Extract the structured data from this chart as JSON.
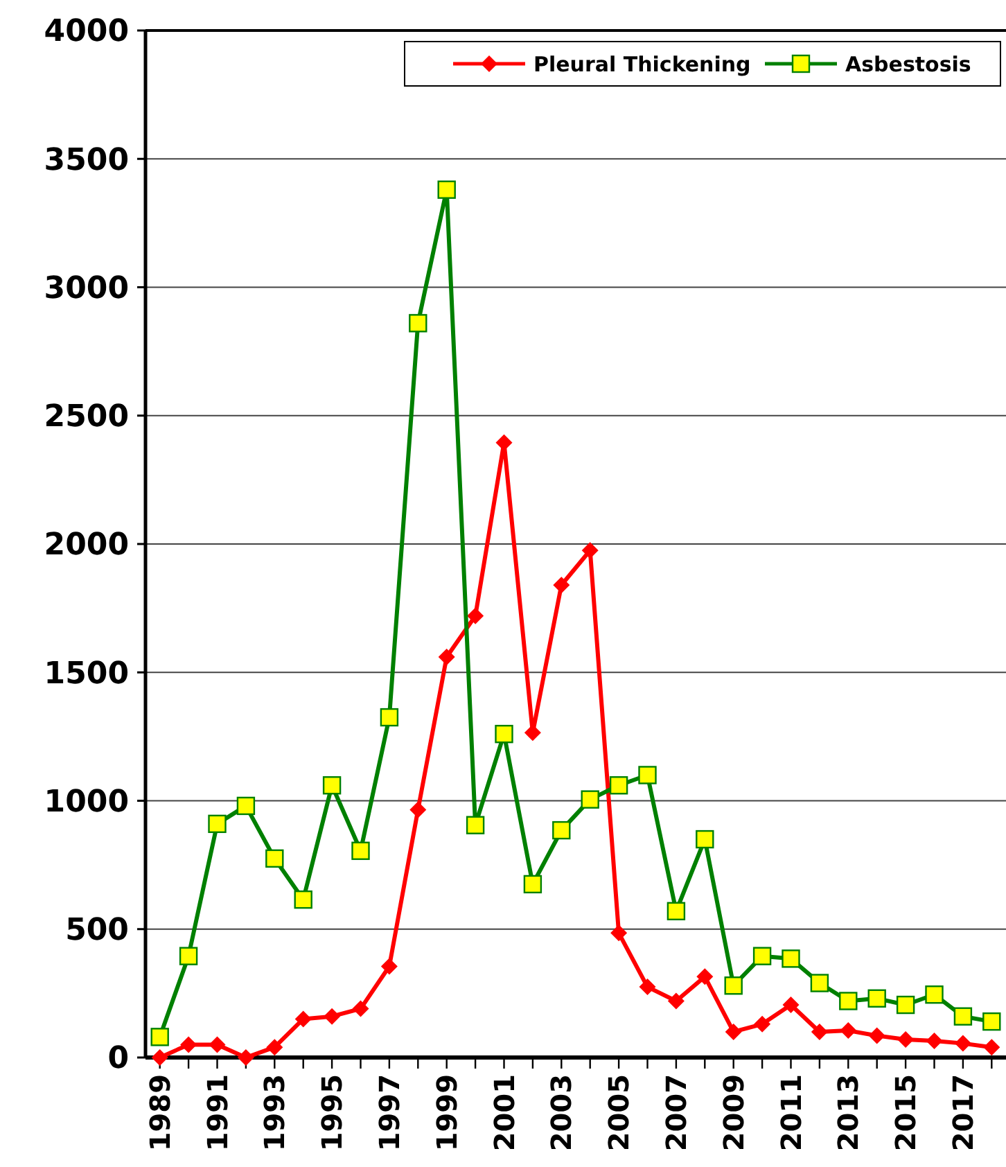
{
  "chart_data": {
    "type": "line",
    "categories": [
      "1989",
      null,
      "1991",
      null,
      "1993",
      null,
      "1995",
      null,
      "1997",
      null,
      "1999",
      null,
      "2001",
      null,
      "2003",
      null,
      "2005",
      null,
      "2007",
      null,
      "2009",
      null,
      "2011",
      null,
      "2013",
      null,
      "2015",
      null,
      "2017",
      null
    ],
    "series": [
      {
        "name": "Pleural Thickening",
        "color": "#ff0000",
        "marker": "diamond",
        "values": [
          0,
          50,
          50,
          0,
          40,
          150,
          160,
          190,
          355,
          965,
          1560,
          1720,
          2395,
          1265,
          1840,
          1975,
          485,
          275,
          220,
          315,
          100,
          130,
          205,
          100,
          105,
          85,
          70,
          65,
          55,
          40
        ]
      },
      {
        "name": "Asbestosis",
        "color": "#008000",
        "marker": "square",
        "values": [
          80,
          395,
          910,
          980,
          775,
          615,
          1060,
          805,
          1325,
          2860,
          3380,
          905,
          1260,
          675,
          885,
          1005,
          1060,
          1100,
          570,
          850,
          280,
          395,
          385,
          290,
          220,
          230,
          205,
          245,
          160,
          140
        ]
      }
    ],
    "ylim": [
      0,
      4000
    ],
    "yticks": [
      0,
      500,
      1000,
      1500,
      2000,
      2500,
      3000,
      3500,
      4000
    ],
    "grid": "y",
    "legend": "top right",
    "line_style": "solid"
  }
}
